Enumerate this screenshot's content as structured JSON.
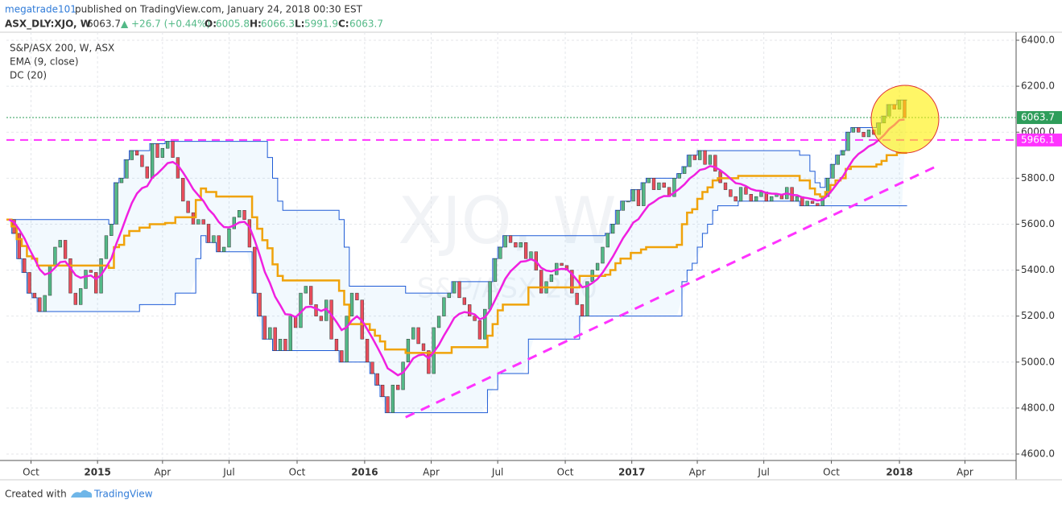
{
  "header": {
    "author": "megatrade101",
    "published": " published on TradingView.com, January 24, 2018 00:30 EST"
  },
  "legend": {
    "symbol": "ASX_DLY:XJO, W",
    "last": 6063.7,
    "arrow": "▲",
    "change": "+26.7 (+0.44%)",
    "o_label": "O:",
    "open": 6005.8,
    "h_label": "H:",
    "high": 6066.3,
    "l_label": "L:",
    "low": 5991.9,
    "c_label": "C:",
    "close": 6063.7,
    "name": "S&P/ASX 200, W, ASX",
    "ema": "EMA (9, close)",
    "dc": "DC (20)",
    "watermark": "XJO, W",
    "watermark_sub": "S&P/ASX 200"
  },
  "footer": {
    "created": "Created with",
    "brand": "TradingView"
  },
  "chart_data": {
    "type": "candlestick",
    "values": [
      5620,
      5560,
      5450,
      5390,
      5300,
      5280,
      5220,
      5290,
      5420,
      5500,
      5530,
      5450,
      5300,
      5250,
      5320,
      5400,
      5390,
      5300,
      5450,
      5550,
      5600,
      5780,
      5800,
      5880,
      5920,
      5900,
      5850,
      5800,
      5950,
      5890,
      5930,
      5960,
      5890,
      5800,
      5700,
      5650,
      5600,
      5620,
      5600,
      5520,
      5550,
      5480,
      5500,
      5580,
      5630,
      5660,
      5620,
      5500,
      5300,
      5200,
      5100,
      5150,
      5050,
      5100,
      5050,
      5200,
      5150,
      5300,
      5330,
      5250,
      5200,
      5180,
      5270,
      5100,
      5050,
      5000,
      5200,
      5300,
      5270,
      5100,
      5000,
      4950,
      4900,
      4850,
      4780,
      4900,
      4880,
      5000,
      5100,
      5150,
      5080,
      5050,
      4950,
      5150,
      5200,
      5280,
      5300,
      5350,
      5280,
      5250,
      5200,
      5180,
      5100,
      5230,
      5350,
      5450,
      5500,
      5550,
      5520,
      5500,
      5520,
      5450,
      5480,
      5400,
      5300,
      5350,
      5380,
      5430,
      5420,
      5400,
      5300,
      5250,
      5200,
      5350,
      5400,
      5430,
      5500,
      5560,
      5600,
      5660,
      5700,
      5700,
      5750,
      5680,
      5780,
      5800,
      5750,
      5780,
      5760,
      5720,
      5800,
      5820,
      5850,
      5900,
      5880,
      5920,
      5860,
      5900,
      5830,
      5780,
      5750,
      5720,
      5700,
      5760,
      5730,
      5700,
      5720,
      5740,
      5700,
      5720,
      5730,
      5710,
      5760,
      5700,
      5720,
      5680,
      5700,
      5690,
      5680,
      5720,
      5800,
      5860,
      5900,
      5920,
      6000,
      6020,
      6000,
      5980,
      6010,
      5990,
      6040,
      6070,
      6120,
      6100,
      6140,
      6063.7
    ],
    "up_color": "#53b987",
    "down_color": "#eb4d5c",
    "ema_color": "#f020e0",
    "dc_color": "#1e5bd6",
    "dc_mid_color": "#f0a30a",
    "ema_period": 9,
    "dc_period": 20,
    "xlim": [
      -0.5,
      196.8
    ],
    "xticks": [
      {
        "value": 4.3,
        "label": "Oct"
      },
      {
        "value": 17.3,
        "label": "2015"
      },
      {
        "value": 30,
        "label": "Apr"
      },
      {
        "value": 43,
        "label": "Jul"
      },
      {
        "value": 56.3,
        "label": "Oct"
      },
      {
        "value": 69.5,
        "label": "2016"
      },
      {
        "value": 82.5,
        "label": "Apr"
      },
      {
        "value": 95.5,
        "label": "Jul"
      },
      {
        "value": 108.7,
        "label": "Oct"
      },
      {
        "value": 121.7,
        "label": "2017"
      },
      {
        "value": 134.5,
        "label": "Apr"
      },
      {
        "value": 147.5,
        "label": "Jul"
      },
      {
        "value": 160.7,
        "label": "Oct"
      },
      {
        "value": 174,
        "label": "2018"
      },
      {
        "value": 186.8,
        "label": "Apr"
      }
    ],
    "ylim": [
      4572,
      6435
    ],
    "yticks": [
      {
        "value": 4600,
        "label": "4600.0"
      },
      {
        "value": 4800,
        "label": "4800.0"
      },
      {
        "value": 5000,
        "label": "5000.0"
      },
      {
        "value": 5200,
        "label": "5200.0"
      },
      {
        "value": 5400,
        "label": "5400.0"
      },
      {
        "value": 5600,
        "label": "5600.0"
      },
      {
        "value": 5800,
        "label": "5800.0"
      },
      {
        "value": 6000,
        "label": "6000.0"
      },
      {
        "value": 6200,
        "label": "6200.0"
      },
      {
        "value": 6400,
        "label": "6400.0"
      }
    ],
    "grid": true,
    "resistance": {
      "value": 5966.1,
      "color": "#ff33ff"
    },
    "trendline": {
      "x": [
        77.5,
        182
      ],
      "y": [
        4760,
        5860
      ],
      "color": "#ff33ff"
    }
  }
}
